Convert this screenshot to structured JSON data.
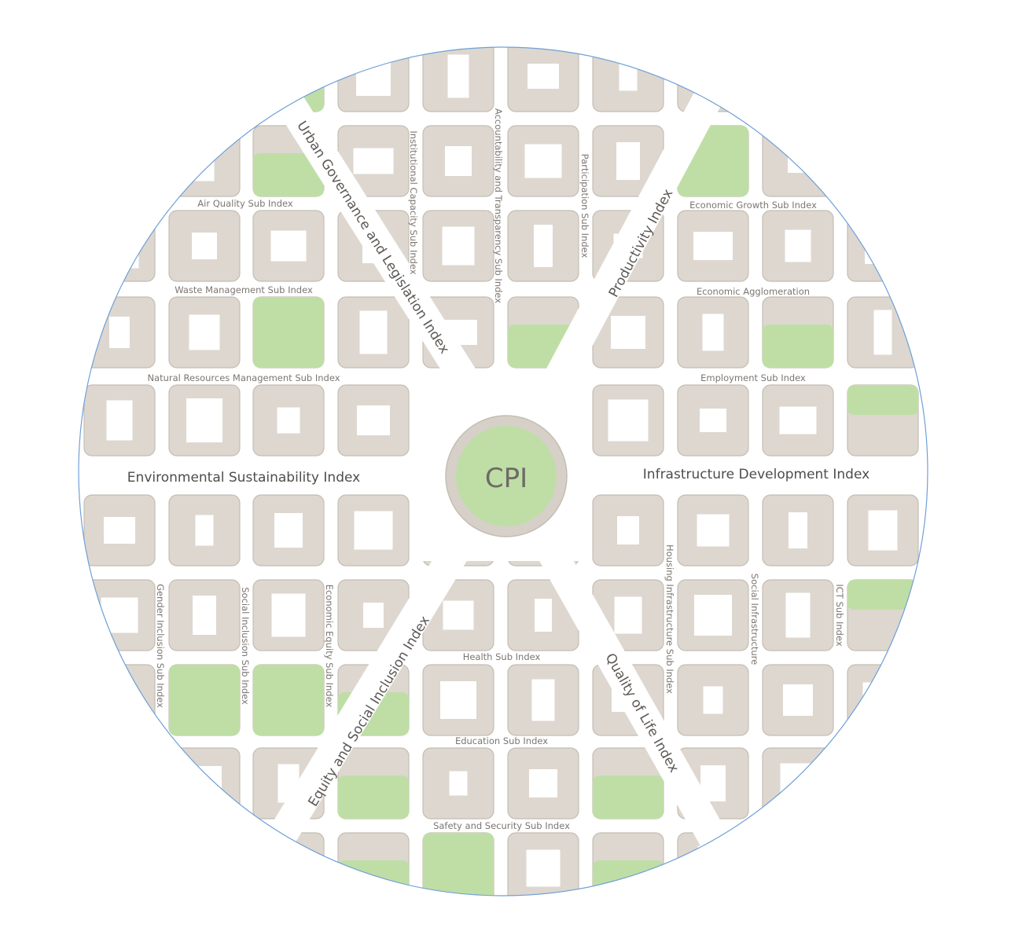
{
  "center": {
    "label": "CPI"
  },
  "main_indices": {
    "environmental": "Environmental Sustainability Index",
    "infrastructure": "Infrastructure Development Index",
    "urban_governance": "Urban Governance and Legislation Index",
    "productivity": "Productivity Index",
    "equity": "Equity and Social Inclusion Index",
    "quality_of_life": "Quality of Life Index"
  },
  "sub_indices": {
    "air_quality": "Air Quality Sub Index",
    "waste_management": "Waste Management Sub Index",
    "natural_resources": "Natural Resources Management Sub Index",
    "institutional_capacity": "Institutional Capacity Sub Index",
    "accountability": "Accountability and Transparency Sub Index",
    "participation": "Participation Sub Index",
    "economic_growth": "Economic Growth Sub Index",
    "economic_agglomeration": "Economic Agglomeration",
    "employment": "Employment Sub Index",
    "gender_inclusion": "Gender Inclusion Sub Index",
    "social_inclusion": "Social Inclusion Sub Index",
    "economic_equity": "Economic Equity Sub Index",
    "health": "Health Sub Index",
    "education": "Education Sub Index",
    "safety": "Safety and Security Sub Index",
    "housing": "Housing Infrastructure Sub Index",
    "social_infrastructure": "Social Infrastructure",
    "ict": "ICT Sub Index"
  },
  "colors": {
    "block": "#ddd7cf",
    "park": "#bfdea6",
    "road": "#ffffff",
    "circle_outline": "#6fa0d8",
    "text": "#6f6a66"
  }
}
